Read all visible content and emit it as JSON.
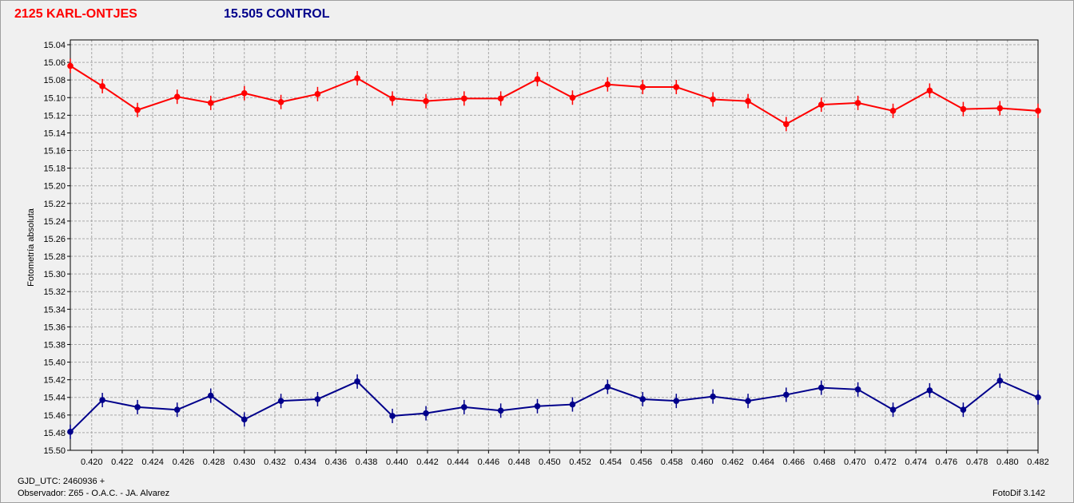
{
  "header": {
    "target_label": "2125 KARL-ONTJES",
    "control_label": "15.505 CONTROL"
  },
  "footer": {
    "gjd": "GJD_UTC: 2460936 +",
    "observer": "Observador: Z65 - O.A.C. - JA. Alvarez",
    "version": "FotoDif 3.142"
  },
  "chart_data": {
    "type": "line",
    "title": "",
    "xlabel": "",
    "ylabel": "Fotometría absoluta",
    "xlim": [
      0.4186,
      0.482
    ],
    "ylim": [
      15.5,
      15.04
    ],
    "y_inverted": true,
    "grid": true,
    "x_ticks": [
      "0.420",
      "0.422",
      "0.424",
      "0.426",
      "0.428",
      "0.430",
      "0.432",
      "0.434",
      "0.436",
      "0.438",
      "0.440",
      "0.442",
      "0.444",
      "0.446",
      "0.448",
      "0.450",
      "0.452",
      "0.454",
      "0.456",
      "0.458",
      "0.460",
      "0.462",
      "0.464",
      "0.466",
      "0.468",
      "0.470",
      "0.472",
      "0.474",
      "0.476",
      "0.478",
      "0.480",
      "0.482"
    ],
    "y_ticks": [
      "15.04",
      "15.06",
      "15.08",
      "15.10",
      "15.12",
      "15.14",
      "15.16",
      "15.18",
      "15.20",
      "15.22",
      "15.24",
      "15.26",
      "15.28",
      "15.30",
      "15.32",
      "15.34",
      "15.36",
      "15.38",
      "15.40",
      "15.42",
      "15.44",
      "15.46",
      "15.48",
      "15.50"
    ],
    "x": [
      0.4186,
      0.4207,
      0.423,
      0.4256,
      0.4278,
      0.43,
      0.4324,
      0.4348,
      0.4374,
      0.4397,
      0.4419,
      0.4444,
      0.4468,
      0.4492,
      0.4515,
      0.4538,
      0.4561,
      0.4583,
      0.4607,
      0.463,
      0.4655,
      0.4678,
      0.4702,
      0.4725,
      0.4749,
      0.4771,
      0.4795,
      0.482
    ],
    "series": [
      {
        "name": "2125 KARL-ONTJES",
        "color": "#ff0000",
        "values": [
          15.064,
          15.087,
          15.114,
          15.099,
          15.106,
          15.095,
          15.105,
          15.096,
          15.078,
          15.101,
          15.104,
          15.101,
          15.101,
          15.079,
          15.1,
          15.085,
          15.088,
          15.088,
          15.102,
          15.104,
          15.13,
          15.108,
          15.106,
          15.115,
          15.092,
          15.113,
          15.112,
          15.115
        ]
      },
      {
        "name": "15.505 CONTROL",
        "color": "#00008b",
        "values": [
          15.479,
          15.443,
          15.451,
          15.454,
          15.438,
          15.465,
          15.444,
          15.442,
          15.422,
          15.461,
          15.458,
          15.451,
          15.455,
          15.45,
          15.448,
          15.428,
          15.442,
          15.444,
          15.439,
          15.444,
          15.437,
          15.429,
          15.431,
          15.454,
          15.432,
          15.454,
          15.421,
          15.44
        ]
      }
    ]
  }
}
